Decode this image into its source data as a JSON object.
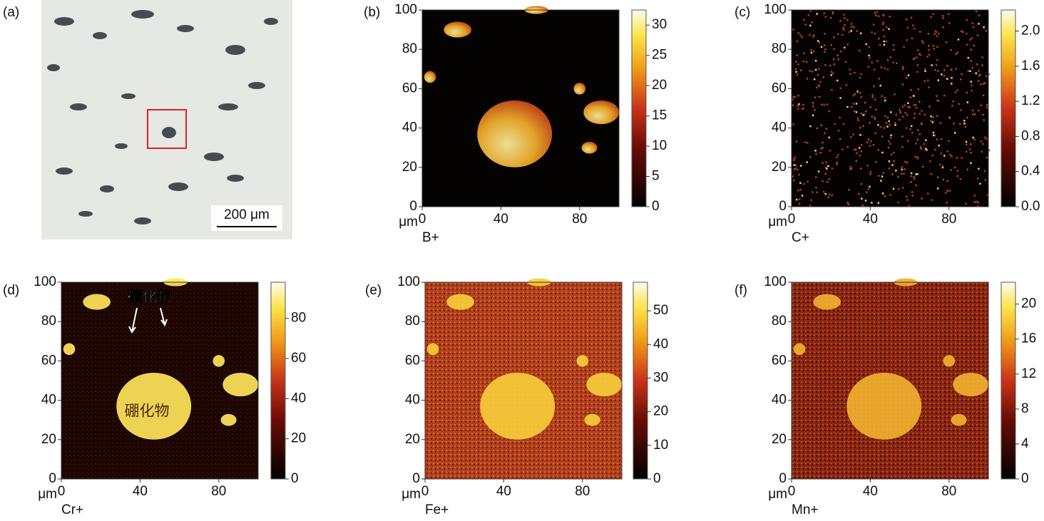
{
  "chart_data": [
    {
      "type": "image",
      "panel_label": "(a)",
      "scale_bar": "200 μm"
    },
    {
      "type": "heatmap",
      "panel_label": "(b)",
      "axis_unit": "μm",
      "element": "B+",
      "xlim": [
        0,
        100
      ],
      "xticks": [
        0,
        40,
        80
      ],
      "ylim": [
        0,
        100
      ],
      "yticks": [
        0,
        20,
        40,
        60,
        80,
        100
      ],
      "colorbar_lim": [
        0,
        32.5
      ],
      "colorbar_ticks": [
        0,
        5,
        10,
        15,
        20,
        25,
        30
      ]
    },
    {
      "type": "heatmap",
      "panel_label": "(c)",
      "axis_unit": "μm",
      "element": "C+",
      "xlim": [
        0,
        100
      ],
      "xticks": [
        0,
        40,
        80
      ],
      "ylim": [
        0,
        100
      ],
      "yticks": [
        0,
        20,
        40,
        60,
        80,
        100
      ],
      "colorbar_lim": [
        0,
        2.24
      ],
      "colorbar_ticks": [
        {
          "value": 0,
          "label": "0.0"
        },
        0.4,
        0.8,
        1.2,
        1.6,
        {
          "value": 2,
          "label": "2.0"
        }
      ]
    },
    {
      "type": "heatmap",
      "panel_label": "(d)",
      "axis_unit": "μm",
      "element": "Cr+",
      "xlim": [
        0,
        100
      ],
      "xticks": [
        0,
        40,
        80
      ],
      "ylim": [
        0,
        100
      ],
      "yticks": [
        0,
        20,
        40,
        60,
        80,
        100
      ],
      "colorbar_lim": [
        0,
        98
      ],
      "colorbar_ticks": [
        0,
        20,
        40,
        60,
        80
      ],
      "annotations": [
        "碳化物",
        "硼化物"
      ]
    },
    {
      "type": "heatmap",
      "panel_label": "(e)",
      "axis_unit": "μm",
      "element": "Fe+",
      "xlim": [
        0,
        100
      ],
      "xticks": [
        0,
        40,
        80
      ],
      "ylim": [
        0,
        100
      ],
      "yticks": [
        0,
        20,
        40,
        60,
        80,
        100
      ],
      "colorbar_lim": [
        0,
        58.5
      ],
      "colorbar_ticks": [
        0,
        10,
        20,
        30,
        40,
        50
      ]
    },
    {
      "type": "heatmap",
      "panel_label": "(f)",
      "axis_unit": "μm",
      "element": "Mn+",
      "xlim": [
        0,
        100
      ],
      "xticks": [
        0,
        40,
        80
      ],
      "ylim": [
        0,
        100
      ],
      "yticks": [
        0,
        20,
        40,
        60,
        80,
        100
      ],
      "colorbar_lim": [
        0,
        22.5
      ],
      "colorbar_ticks": [
        0,
        4,
        8,
        12,
        16,
        20
      ]
    }
  ]
}
